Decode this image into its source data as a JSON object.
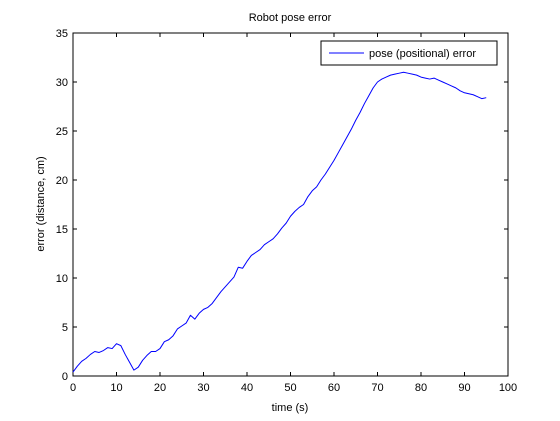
{
  "chart_data": {
    "type": "line",
    "title": "Robot pose error",
    "xlabel": "time (s)",
    "ylabel": "error (distance, cm)",
    "xlim": [
      0,
      100
    ],
    "ylim": [
      0,
      35
    ],
    "xticks": [
      0,
      10,
      20,
      30,
      40,
      50,
      60,
      70,
      80,
      90,
      100
    ],
    "yticks": [
      0,
      5,
      10,
      15,
      20,
      25,
      30,
      35
    ],
    "grid": false,
    "legend_position": "top-right",
    "series": [
      {
        "name": "pose (positional) error",
        "color": "#0000ff",
        "x": [
          0,
          1,
          2,
          3,
          4,
          5,
          6,
          7,
          8,
          9,
          10,
          11,
          12,
          13,
          14,
          15,
          16,
          17,
          18,
          19,
          20,
          21,
          22,
          23,
          24,
          25,
          26,
          27,
          28,
          29,
          30,
          31,
          32,
          33,
          34,
          35,
          36,
          37,
          38,
          39,
          40,
          41,
          42,
          43,
          44,
          45,
          46,
          47,
          48,
          49,
          50,
          51,
          52,
          53,
          54,
          55,
          56,
          57,
          58,
          59,
          60,
          61,
          62,
          63,
          64,
          65,
          66,
          67,
          68,
          69,
          70,
          71,
          72,
          73,
          74,
          75,
          76,
          77,
          78,
          79,
          80,
          81,
          82,
          83,
          84,
          85,
          86,
          87,
          88,
          89,
          90,
          91,
          92,
          93,
          94,
          95
        ],
        "y": [
          0.4,
          1.0,
          1.5,
          1.8,
          2.2,
          2.5,
          2.4,
          2.6,
          2.9,
          2.8,
          3.3,
          3.1,
          2.2,
          1.4,
          0.6,
          0.9,
          1.6,
          2.1,
          2.5,
          2.5,
          2.8,
          3.5,
          3.7,
          4.1,
          4.8,
          5.1,
          5.4,
          6.2,
          5.8,
          6.4,
          6.8,
          7.0,
          7.4,
          8.0,
          8.6,
          9.1,
          9.6,
          10.1,
          11.1,
          11.0,
          11.7,
          12.3,
          12.6,
          12.9,
          13.4,
          13.7,
          14.0,
          14.5,
          15.1,
          15.6,
          16.3,
          16.8,
          17.2,
          17.5,
          18.3,
          18.9,
          19.3,
          20.0,
          20.6,
          21.3,
          22.0,
          22.8,
          23.6,
          24.4,
          25.2,
          26.1,
          26.9,
          27.8,
          28.6,
          29.4,
          30.0,
          30.3,
          30.5,
          30.7,
          30.8,
          30.9,
          31.0,
          30.9,
          30.8,
          30.7,
          30.5,
          30.4,
          30.3,
          30.4,
          30.2,
          30.0,
          29.8,
          29.6,
          29.4,
          29.1,
          28.9,
          28.8,
          28.7,
          28.5,
          28.3,
          28.4
        ]
      }
    ]
  }
}
